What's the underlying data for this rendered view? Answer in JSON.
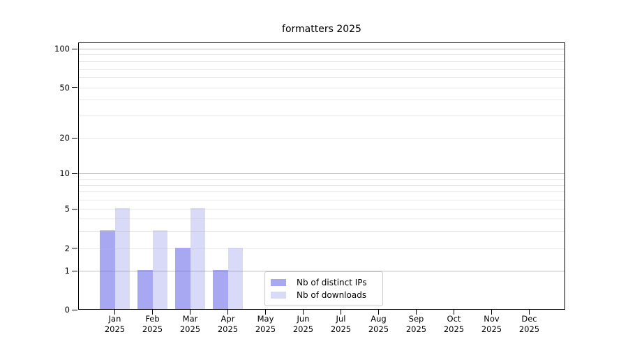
{
  "chart_data": {
    "type": "bar",
    "title": "formatters 2025",
    "categories": [
      "Jan 2025",
      "Feb 2025",
      "Mar 2025",
      "Apr 2025",
      "May 2025",
      "Jun 2025",
      "Jul 2025",
      "Aug 2025",
      "Sep 2025",
      "Oct 2025",
      "Nov 2025",
      "Dec 2025"
    ],
    "series": [
      {
        "name": "Nb of distinct IPs",
        "color": "#a8a8f2",
        "values": [
          3,
          1,
          2,
          1,
          0,
          0,
          0,
          0,
          0,
          0,
          0,
          0
        ]
      },
      {
        "name": "Nb of downloads",
        "color": "#d9d9f8",
        "values": [
          5,
          3,
          5,
          2,
          0,
          0,
          0,
          0,
          0,
          0,
          0,
          0
        ]
      }
    ],
    "xlabel": "",
    "ylabel": "",
    "yscale": "log-like with 0 baseline",
    "ylim": [
      0,
      115
    ],
    "ytick_labels": [
      100,
      50,
      20,
      10,
      5,
      2,
      1,
      0
    ],
    "grid": "horizontal major and minor gridlines, drawn over bars",
    "legend": {
      "position": "lower center inside plot",
      "entries": [
        "Nb of distinct IPs",
        "Nb of downloads"
      ]
    }
  },
  "colors": {
    "background": "#ffffff",
    "spine": "#000000",
    "major_grid": "#c0c0c0",
    "minor_grid": "#e8e8e8",
    "text": "#000000"
  }
}
